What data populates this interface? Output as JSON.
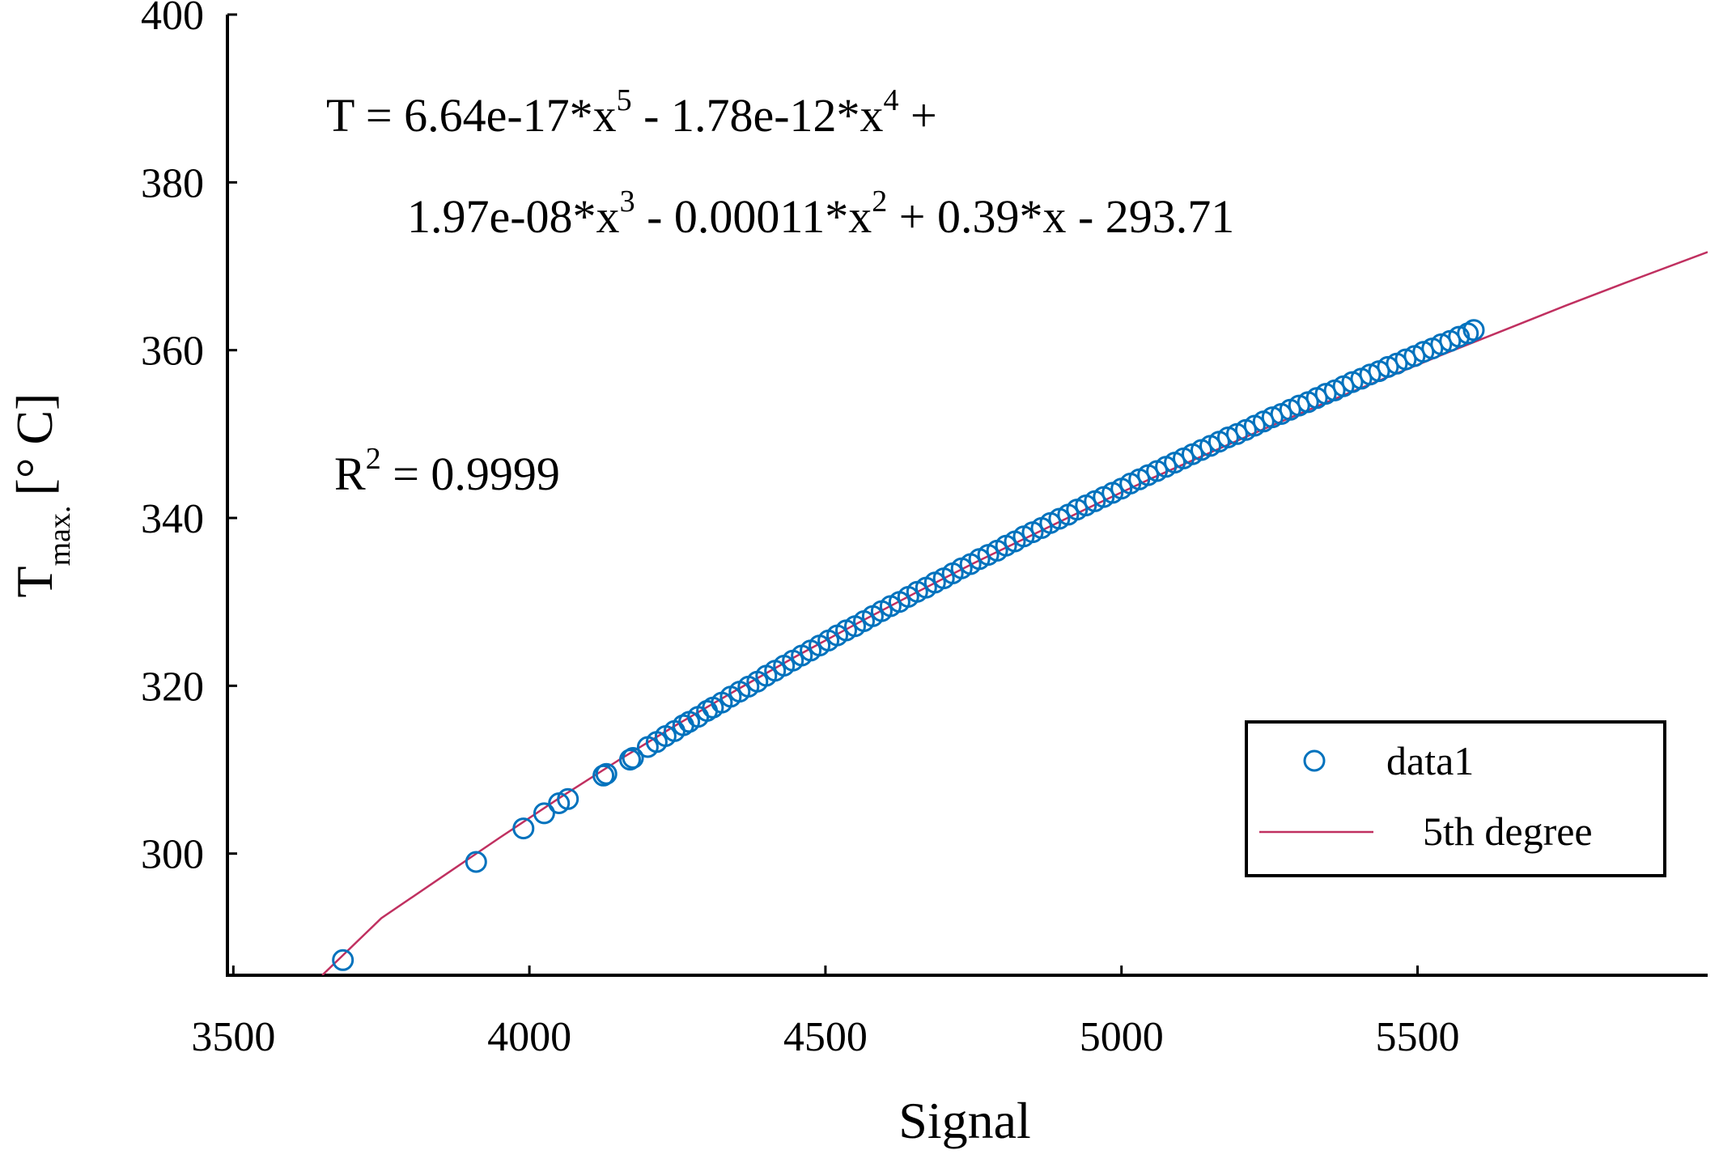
{
  "chart_data": {
    "type": "scatter",
    "xlabel": "Signal",
    "ylabel": {
      "base": "T",
      "subscript": "max.",
      "unit": "[° C]"
    },
    "xlim": [
      3490,
      5990
    ],
    "ylim": [
      285.5,
      400
    ],
    "xticks": [
      3500,
      4000,
      4500,
      5000,
      5500
    ],
    "yticks": [
      300,
      320,
      340,
      360,
      380,
      400
    ],
    "grid": false,
    "legend_position": "bottom-right",
    "colors": {
      "data1": "#0072BD",
      "fit": "#C03060"
    },
    "annotations": {
      "equation_line1": {
        "t1": "T = 6.64e-17*x",
        "s1": "5",
        "t2": " - 1.78e-12*x",
        "s2": "4",
        "t3": " +"
      },
      "equation_line2": {
        "t1": "1.97e-08*x",
        "s1": "3",
        "t2": " - 0.00011*x",
        "s2": "2",
        "t3": " + 0.39*x - 293.71"
      },
      "r2": {
        "base": "R",
        "sup": "2",
        "rest": " = 0.9999"
      }
    },
    "series": [
      {
        "name": "data1",
        "kind": "scatter",
        "marker": "circle-open",
        "x": [
          3685,
          3910,
          3990,
          4025,
          4050,
          4065,
          4125,
          4130,
          4170,
          4175,
          4200,
          4215,
          4230,
          4245,
          4260,
          4270,
          4285,
          4300,
          4310,
          4325,
          4340,
          4355,
          4370,
          4385,
          4400,
          4415,
          4430,
          4445,
          4460,
          4475,
          4490,
          4505,
          4520,
          4535,
          4550,
          4565,
          4580,
          4595,
          4610,
          4625,
          4640,
          4655,
          4670,
          4685,
          4700,
          4715,
          4730,
          4745,
          4760,
          4775,
          4790,
          4805,
          4820,
          4835,
          4850,
          4865,
          4880,
          4895,
          4910,
          4925,
          4940,
          4955,
          4970,
          4985,
          5000,
          5015,
          5030,
          5045,
          5060,
          5075,
          5090,
          5105,
          5120,
          5135,
          5150,
          5165,
          5180,
          5195,
          5210,
          5225,
          5240,
          5255,
          5270,
          5285,
          5300,
          5315,
          5330,
          5345,
          5360,
          5375,
          5390,
          5405,
          5420,
          5435,
          5450,
          5465,
          5480,
          5495,
          5510,
          5525,
          5540,
          5555,
          5570,
          5585,
          5595
        ],
        "y": [
          287.3,
          299.0,
          303.0,
          304.8,
          306.0,
          306.5,
          309.3,
          309.5,
          311.2,
          311.4,
          312.7,
          313.3,
          314.0,
          314.6,
          315.3,
          315.7,
          316.3,
          317.0,
          317.4,
          318.0,
          318.7,
          319.3,
          319.9,
          320.5,
          321.2,
          321.8,
          322.4,
          323.0,
          323.6,
          324.2,
          324.8,
          325.4,
          326.0,
          326.6,
          327.1,
          327.7,
          328.3,
          328.9,
          329.5,
          330.0,
          330.6,
          331.2,
          331.7,
          332.3,
          332.8,
          333.4,
          334.0,
          334.5,
          335.1,
          335.6,
          336.1,
          336.7,
          337.2,
          337.8,
          338.3,
          338.8,
          339.4,
          339.9,
          340.4,
          341.0,
          341.5,
          342.0,
          342.5,
          343.0,
          343.5,
          344.1,
          344.6,
          345.1,
          345.6,
          346.1,
          346.6,
          347.1,
          347.6,
          348.1,
          348.6,
          349.1,
          349.6,
          350.0,
          350.5,
          351.0,
          351.5,
          352.0,
          352.4,
          352.9,
          353.4,
          353.8,
          354.3,
          354.8,
          355.2,
          355.7,
          356.2,
          356.6,
          357.1,
          357.5,
          358.0,
          358.4,
          358.9,
          359.3,
          359.8,
          360.2,
          360.7,
          361.1,
          361.6,
          362.0,
          362.4
        ]
      },
      {
        "name": "5th degree",
        "kind": "line",
        "x": [
          3650,
          3750,
          3850,
          3950,
          4050,
          4150,
          4250,
          4350,
          4450,
          4550,
          4650,
          4750,
          4850,
          4950,
          5050,
          5150,
          5250,
          5350,
          5450,
          5550,
          5650,
          5750,
          5850,
          5990
        ],
        "y": [
          285.5,
          292.3,
          297.1,
          301.9,
          306.6,
          311.1,
          315.4,
          319.5,
          323.5,
          327.3,
          331.0,
          334.6,
          338.0,
          341.4,
          344.7,
          347.8,
          350.9,
          353.9,
          356.8,
          359.7,
          362.5,
          365.3,
          368.0,
          371.7
        ]
      }
    ]
  }
}
